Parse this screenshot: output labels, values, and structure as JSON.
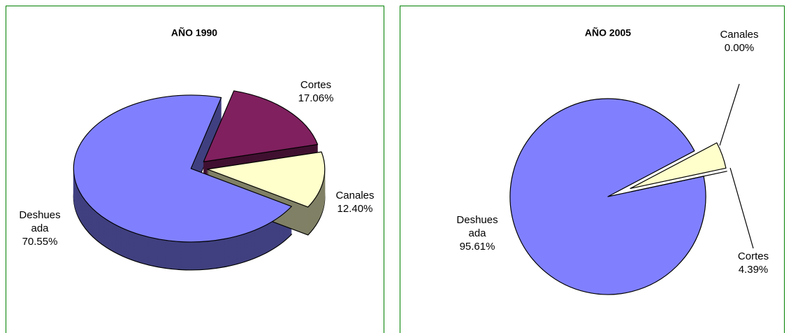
{
  "chart_data": [
    {
      "type": "pie3d",
      "title": "AÑO 1990",
      "categories": [
        "Deshuesada",
        "Cortes",
        "Canales"
      ],
      "values": [
        70.55,
        17.06,
        12.4
      ],
      "value_labels": [
        "70.55%",
        "17.06%",
        "12.40%"
      ],
      "colors": [
        "#8080ff",
        "#80205f",
        "#ffffcc"
      ]
    },
    {
      "type": "pie",
      "title": "AÑO 2005",
      "categories": [
        "Deshuesada",
        "Cortes",
        "Canales"
      ],
      "values": [
        95.61,
        4.39,
        0.0
      ],
      "value_labels": [
        "95.61%",
        "4.39%",
        "0.00%"
      ],
      "colors": [
        "#8080ff",
        "#ffffcc",
        "#80205f"
      ]
    }
  ]
}
